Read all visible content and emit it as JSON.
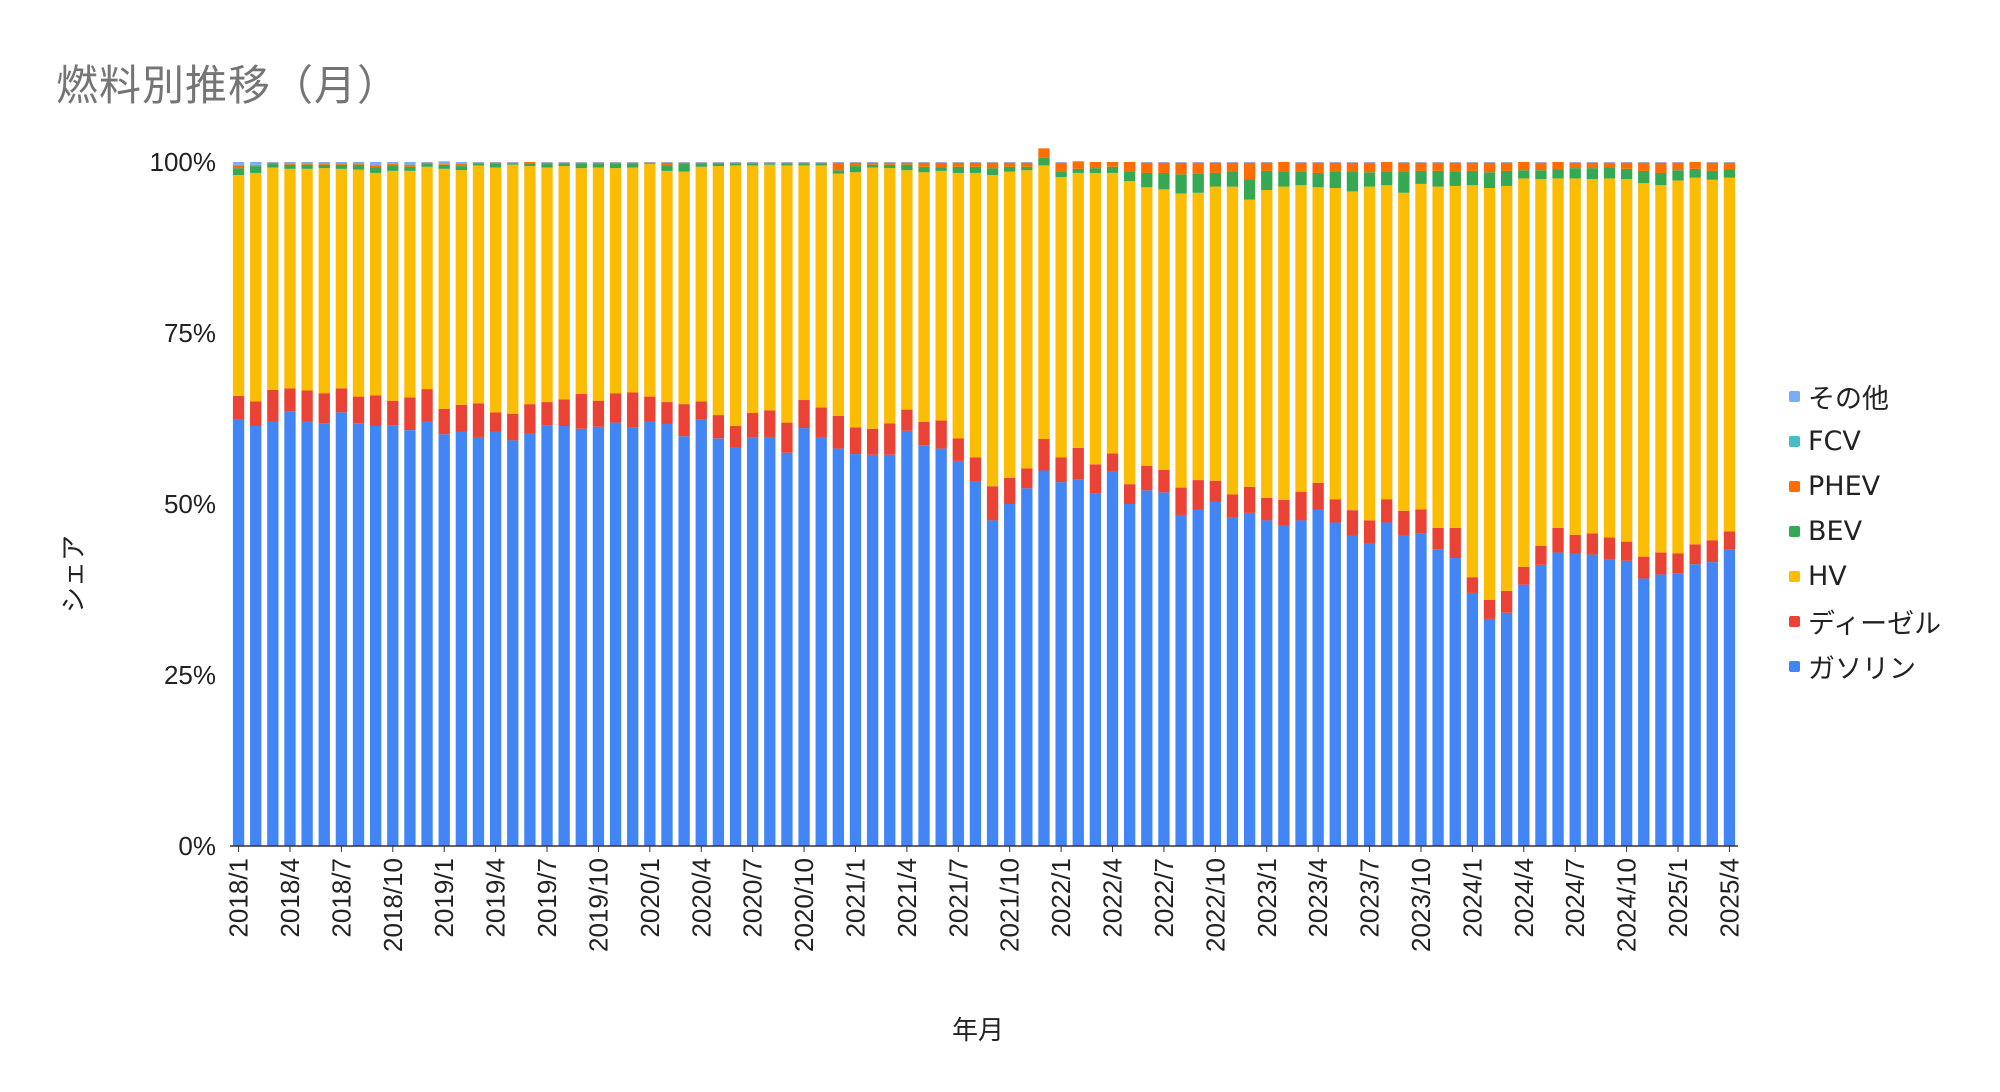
{
  "chart_data": {
    "type": "bar",
    "stacked": true,
    "title": "燃料別推移（月）",
    "xlabel": "年月",
    "ylabel": "シェア",
    "ylim": [
      0,
      100
    ],
    "y_ticks": [
      "0%",
      "25%",
      "50%",
      "75%",
      "100%"
    ],
    "grid": false,
    "legend_position": "right",
    "legend_order": [
      "その他",
      "FCV",
      "PHEV",
      "BEV",
      "HV",
      "ディーゼル",
      "ガソリン"
    ],
    "x_tick_labels": [
      "2018/1",
      "2018/4",
      "2018/7",
      "2018/10",
      "2019/1",
      "2019/4",
      "2019/7",
      "2019/10",
      "2020/1",
      "2020/4",
      "2020/7",
      "2020/10",
      "2021/1",
      "2021/4",
      "2021/7",
      "2021/10",
      "2022/1",
      "2022/4",
      "2022/7",
      "2022/10",
      "2023/1",
      "2023/4",
      "2023/7",
      "2023/10",
      "2024/1",
      "2024/4",
      "2024/7",
      "2024/10",
      "2025/1",
      "2025/4"
    ],
    "categories": [
      "2018/1",
      "2018/2",
      "2018/3",
      "2018/4",
      "2018/5",
      "2018/6",
      "2018/7",
      "2018/8",
      "2018/9",
      "2018/10",
      "2018/11",
      "2018/12",
      "2019/1",
      "2019/2",
      "2019/3",
      "2019/4",
      "2019/5",
      "2019/6",
      "2019/7",
      "2019/8",
      "2019/9",
      "2019/10",
      "2019/11",
      "2019/12",
      "2020/1",
      "2020/2",
      "2020/3",
      "2020/4",
      "2020/5",
      "2020/6",
      "2020/7",
      "2020/8",
      "2020/9",
      "2020/10",
      "2020/11",
      "2020/12",
      "2021/1",
      "2021/2",
      "2021/3",
      "2021/4",
      "2021/5",
      "2021/6",
      "2021/7",
      "2021/8",
      "2021/9",
      "2021/10",
      "2021/11",
      "2021/12",
      "2022/1",
      "2022/2",
      "2022/3",
      "2022/4",
      "2022/5",
      "2022/6",
      "2022/7",
      "2022/8",
      "2022/9",
      "2022/10",
      "2022/11",
      "2022/12",
      "2023/1",
      "2023/2",
      "2023/3",
      "2023/4",
      "2023/5",
      "2023/6",
      "2023/7",
      "2023/8",
      "2023/9",
      "2023/10",
      "2023/11",
      "2023/12",
      "2024/1",
      "2024/2",
      "2024/3",
      "2024/4",
      "2024/5",
      "2024/6",
      "2024/7",
      "2024/8",
      "2024/9",
      "2024/10",
      "2024/11",
      "2024/12",
      "2025/1",
      "2025/2",
      "2025/3",
      "2025/4"
    ],
    "series": [
      {
        "name": "ガソリン",
        "color": "#4285f4",
        "values": [
          62.3,
          61.4,
          62.0,
          63.5,
          62.0,
          61.8,
          63.4,
          61.8,
          61.4,
          61.5,
          60.8,
          62.0,
          60.2,
          60.6,
          59.8,
          60.6,
          59.3,
          60.3,
          61.5,
          61.4,
          61.0,
          61.3,
          61.9,
          61.2,
          62.0,
          61.7,
          59.9,
          62.3,
          59.6,
          58.2,
          59.7,
          59.8,
          57.5,
          61.1,
          59.8,
          58.1,
          57.3,
          57.2,
          57.2,
          60.7,
          58.6,
          58.1,
          56.3,
          53.3,
          47.6,
          50.0,
          52.3,
          54.9,
          53.2,
          53.6,
          51.6,
          54.7,
          50.0,
          52.0,
          51.7,
          48.4,
          49.2,
          50.3,
          48.1,
          48.7,
          47.6,
          46.8,
          47.6,
          49.2,
          47.3,
          45.4,
          44.3,
          47.3,
          45.4,
          45.7,
          43.4,
          42.1,
          37.0,
          33.2,
          34.1,
          38.2,
          41.1,
          42.9,
          42.7,
          42.6,
          41.9,
          41.7,
          39.1,
          39.7,
          39.9,
          41.2,
          41.5,
          43.3
        ]
      },
      {
        "name": "ディーゼル",
        "color": "#ea4335",
        "values": [
          3.5,
          3.6,
          4.7,
          3.4,
          4.6,
          4.4,
          3.5,
          3.9,
          4.5,
          3.6,
          4.8,
          4.8,
          3.7,
          3.9,
          4.9,
          2.8,
          3.9,
          4.3,
          3.4,
          3.9,
          5.1,
          3.8,
          4.3,
          5.1,
          3.7,
          3.2,
          4.7,
          2.7,
          3.4,
          3.2,
          3.6,
          3.9,
          4.4,
          4.1,
          4.3,
          4.8,
          3.9,
          3.8,
          4.6,
          3.1,
          3.4,
          4.1,
          3.3,
          3.5,
          5.0,
          3.8,
          2.9,
          4.6,
          3.6,
          4.6,
          4.2,
          2.7,
          2.9,
          3.6,
          3.3,
          4.0,
          4.3,
          3.1,
          3.3,
          3.8,
          3.3,
          3.8,
          4.2,
          3.9,
          3.4,
          3.7,
          3.3,
          3.4,
          3.6,
          3.5,
          3.1,
          4.4,
          2.3,
          2.8,
          3.2,
          2.6,
          2.8,
          3.6,
          2.8,
          3.1,
          3.2,
          2.8,
          3.2,
          3.2,
          2.9,
          2.9,
          3.2,
          2.7
        ]
      },
      {
        "name": "HV",
        "color": "#fbbc04",
        "values": [
          32.3,
          33.4,
          32.5,
          32.1,
          32.4,
          32.9,
          32.1,
          33.2,
          32.5,
          33.6,
          33.1,
          32.5,
          35.1,
          34.3,
          34.8,
          35.8,
          36.4,
          34.8,
          34.3,
          34.1,
          33.0,
          34.1,
          32.9,
          32.9,
          34.0,
          33.8,
          34.0,
          34.3,
          36.4,
          38.1,
          36.2,
          35.9,
          37.6,
          34.3,
          35.4,
          35.4,
          37.3,
          38.2,
          37.3,
          35.0,
          36.5,
          36.5,
          38.8,
          41.6,
          45.5,
          44.8,
          43.6,
          40.0,
          41.0,
          40.2,
          42.6,
          41.0,
          44.3,
          40.7,
          41.0,
          43.0,
          42.0,
          43.0,
          45.0,
          42.0,
          45.0,
          45.8,
          44.8,
          43.2,
          45.5,
          46.6,
          48.8,
          45.9,
          46.5,
          47.6,
          49.9,
          50.0,
          57.3,
          60.2,
          59.2,
          56.8,
          53.6,
          51.1,
          52.1,
          51.8,
          52.5,
          53.0,
          54.6,
          53.7,
          54.5,
          53.6,
          52.7,
          51.7
        ]
      },
      {
        "name": "BEV",
        "color": "#34a853",
        "values": [
          1.0,
          1.0,
          0.5,
          0.6,
          0.6,
          0.5,
          0.6,
          0.7,
          0.8,
          0.8,
          0.6,
          0.4,
          0.6,
          0.6,
          0.3,
          0.6,
          0.2,
          0.4,
          0.5,
          0.4,
          0.7,
          0.5,
          0.7,
          0.6,
          0.1,
          0.8,
          1.1,
          0.4,
          0.4,
          0.3,
          0.3,
          0.2,
          0.3,
          0.3,
          0.3,
          0.5,
          0.9,
          0.4,
          0.5,
          0.8,
          0.8,
          0.5,
          0.9,
          0.9,
          1.0,
          0.7,
          0.5,
          1.1,
          0.8,
          0.6,
          0.7,
          0.9,
          1.4,
          2.1,
          2.4,
          2.8,
          2.8,
          2.0,
          2.2,
          3.0,
          2.8,
          2.2,
          2.0,
          2.1,
          2.4,
          2.9,
          2.1,
          2.0,
          3.1,
          1.9,
          2.3,
          2.1,
          2.1,
          2.3,
          2.2,
          1.2,
          1.3,
          1.3,
          1.5,
          1.6,
          1.6,
          1.5,
          1.8,
          1.8,
          1.5,
          1.3,
          1.3,
          1.2
        ]
      },
      {
        "name": "PHEV",
        "color": "#ff6d01",
        "values": [
          0.4,
          0.1,
          0.2,
          0.2,
          0.2,
          0.2,
          0.2,
          0.2,
          0.3,
          0.2,
          0.3,
          0.2,
          0.1,
          0.3,
          0.1,
          0.1,
          0.1,
          0.2,
          0.2,
          0.1,
          0.1,
          0.2,
          0.1,
          0.1,
          0.1,
          0.4,
          0.2,
          0.2,
          0.1,
          0.1,
          0.1,
          0.1,
          0.1,
          0.1,
          0.1,
          1.1,
          0.5,
          0.3,
          0.3,
          0.3,
          0.6,
          0.7,
          0.6,
          0.6,
          0.8,
          0.6,
          0.6,
          1.4,
          1.3,
          1.1,
          0.9,
          0.7,
          1.4,
          1.5,
          1.5,
          1.7,
          1.6,
          1.5,
          1.3,
          2.4,
          1.2,
          1.4,
          1.3,
          1.5,
          1.3,
          1.3,
          1.4,
          1.4,
          1.3,
          1.2,
          1.2,
          1.3,
          1.2,
          1.4,
          1.2,
          1.2,
          1.1,
          1.1,
          0.8,
          0.8,
          0.7,
          0.9,
          1.2,
          1.5,
          1.1,
          1.0,
          1.2,
          1.0
        ]
      },
      {
        "name": "FCV",
        "color": "#46bdc6",
        "values": [
          0.1,
          0.1,
          0.0,
          0.0,
          0.0,
          0.0,
          0.0,
          0.0,
          0.0,
          0.1,
          0.1,
          0.0,
          0.1,
          0.1,
          0.0,
          0.0,
          0.0,
          0.0,
          0.0,
          0.0,
          0.0,
          0.0,
          0.0,
          0.0,
          0.0,
          0.0,
          0.0,
          0.0,
          0.0,
          0.0,
          0.0,
          0.0,
          0.0,
          0.0,
          0.0,
          0.0,
          0.0,
          0.0,
          0.0,
          0.0,
          0.0,
          0.0,
          0.0,
          0.0,
          0.0,
          0.0,
          0.0,
          0.0,
          0.0,
          0.0,
          0.0,
          0.0,
          0.0,
          0.0,
          0.0,
          0.0,
          0.0,
          0.0,
          0.0,
          0.0,
          0.0,
          0.0,
          0.0,
          0.0,
          0.0,
          0.0,
          0.0,
          0.0,
          0.0,
          0.0,
          0.0,
          0.0,
          0.0,
          0.0,
          0.0,
          0.0,
          0.0,
          0.0,
          0.0,
          0.0,
          0.0,
          0.0,
          0.0,
          0.0,
          0.0,
          0.0,
          0.0,
          0.0
        ]
      },
      {
        "name": "その他",
        "color": "#7baaf7",
        "values": [
          0.4,
          0.4,
          0.1,
          0.2,
          0.2,
          0.2,
          0.2,
          0.2,
          0.5,
          0.2,
          0.3,
          0.1,
          0.3,
          0.2,
          0.1,
          0.1,
          0.1,
          0.0,
          0.1,
          0.1,
          0.1,
          0.1,
          0.1,
          0.1,
          0.1,
          0.1,
          0.1,
          0.1,
          0.1,
          0.1,
          0.1,
          0.1,
          0.1,
          0.1,
          0.1,
          0.1,
          0.1,
          0.1,
          0.1,
          0.1,
          0.1,
          0.1,
          0.1,
          0.1,
          0.1,
          0.1,
          0.1,
          0.0,
          0.1,
          0.0,
          0.0,
          0.0,
          0.0,
          0.1,
          0.1,
          0.1,
          0.1,
          0.1,
          0.1,
          0.1,
          0.1,
          0.0,
          0.1,
          0.1,
          0.1,
          0.1,
          0.1,
          0.0,
          0.1,
          0.1,
          0.1,
          0.1,
          0.1,
          0.1,
          0.1,
          0.0,
          0.1,
          0.0,
          0.1,
          0.1,
          0.1,
          0.1,
          0.1,
          0.1,
          0.1,
          0.0,
          0.1,
          0.1
        ]
      }
    ]
  }
}
